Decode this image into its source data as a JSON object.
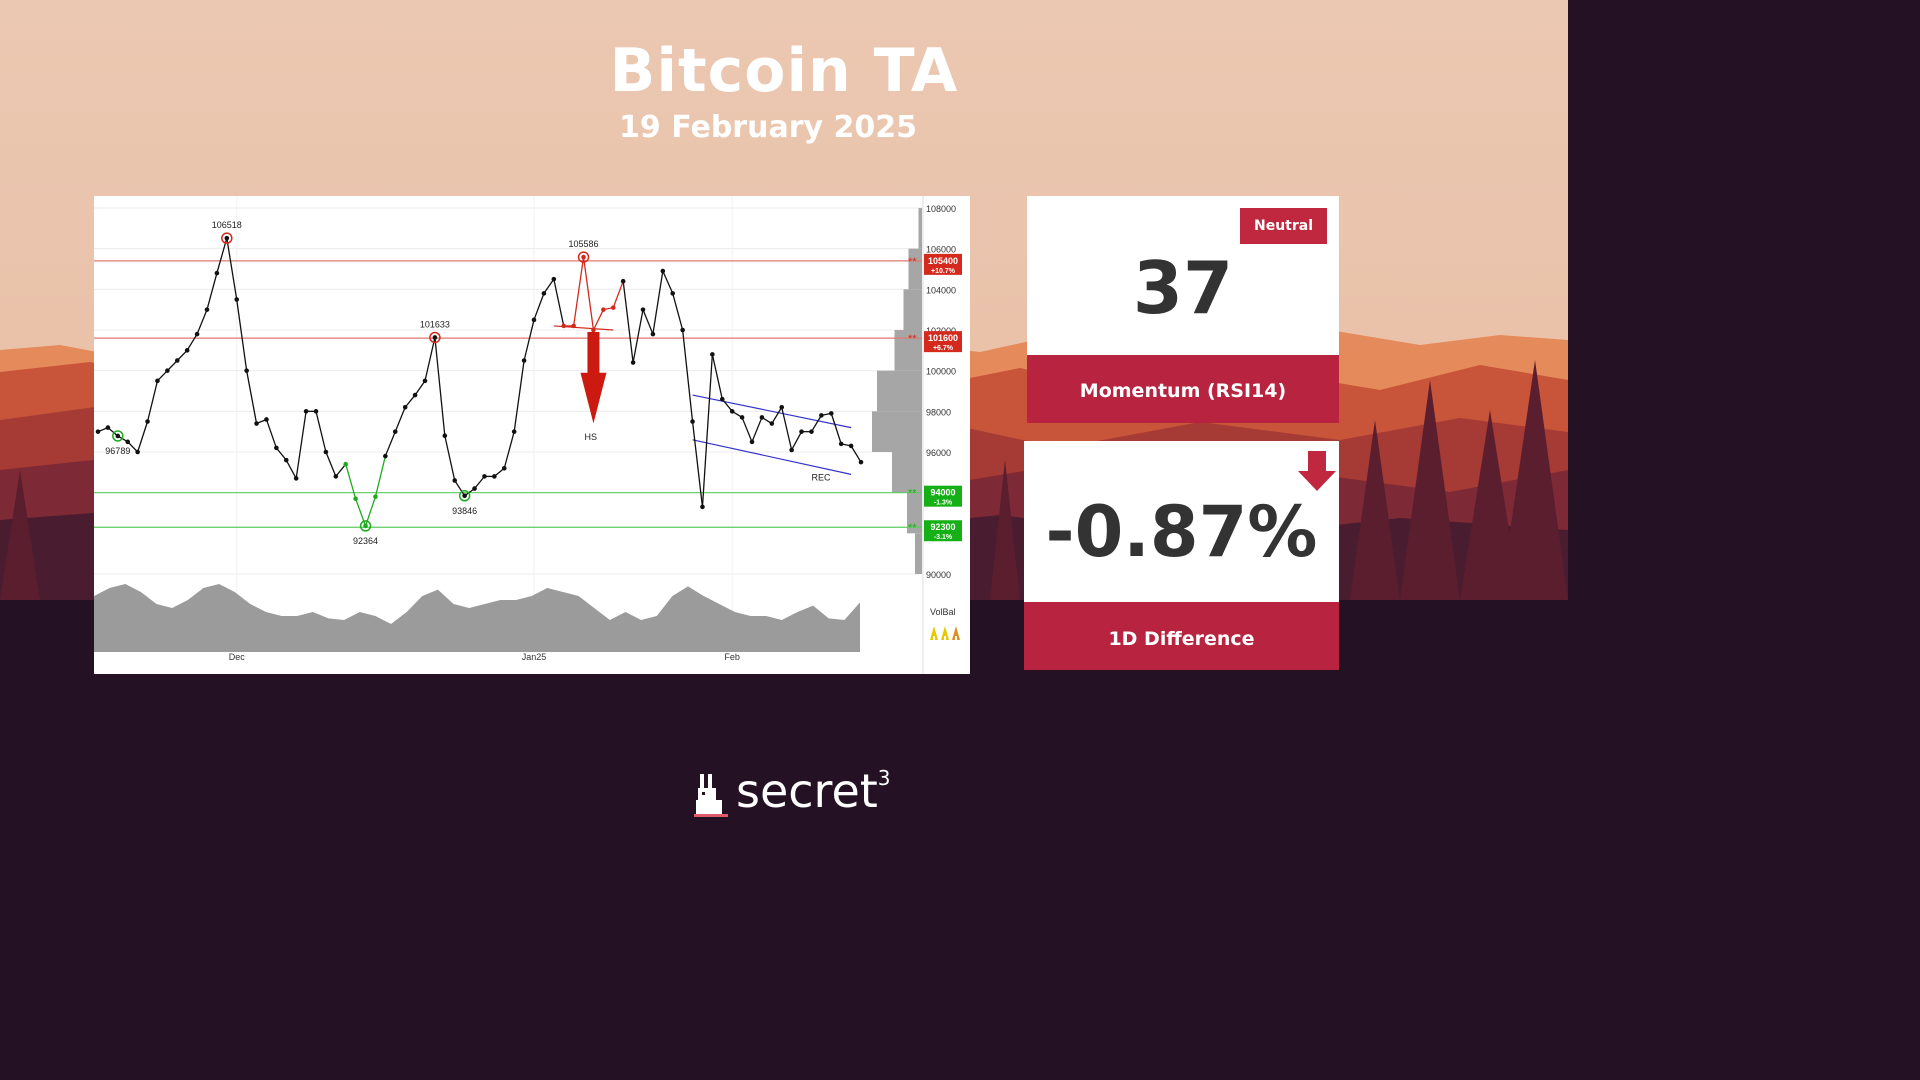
{
  "header": {
    "title": "Bitcoin TA",
    "date": "19 February 2025"
  },
  "rsi_card": {
    "badge": "Neutral",
    "value": "37",
    "label": "Momentum (RSI14)"
  },
  "diff_card": {
    "value": "-0.87%",
    "label": "1D Difference",
    "direction": "down"
  },
  "brand": {
    "name": "secret",
    "superscript": "3"
  },
  "colors": {
    "accent_red": "#b8233f",
    "resistance": "#e07a72",
    "support": "#5ccc5c",
    "price_line": "#111111",
    "background_top": "#ebc8b2",
    "background_bottom": "#241224"
  },
  "chart_data": {
    "type": "line",
    "title": "",
    "xlabel": "",
    "ylabel": "",
    "ylim": [
      88000,
      108000
    ],
    "x_ticks": [
      "Dec",
      "Jan25",
      "Feb"
    ],
    "y_ticks": [
      "108000",
      "106000",
      "104000",
      "102000",
      "100000",
      "98000",
      "96000",
      "90000"
    ],
    "price": [
      97000,
      97200,
      96789,
      96500,
      96000,
      97500,
      99500,
      100000,
      100500,
      101000,
      101800,
      103000,
      104800,
      106518,
      103500,
      100000,
      97400,
      97600,
      96200,
      95600,
      94700,
      98000,
      98000,
      96000,
      94800,
      95400,
      93700,
      92364,
      93800,
      95800,
      97000,
      98200,
      98800,
      99500,
      101633,
      96800,
      94600,
      93846,
      94200,
      94800,
      94800,
      95200,
      97000,
      100500,
      102500,
      103800,
      104500,
      102200,
      102200,
      105586,
      102000,
      103000,
      103100,
      104400,
      100400,
      103000,
      101800,
      104900,
      103800,
      102000,
      97500,
      93300,
      100800,
      98600,
      98000,
      97700,
      96500,
      97700,
      97400,
      98200,
      96100,
      97000,
      97000,
      97800,
      97900,
      96400,
      96300,
      95500
    ],
    "annotations": [
      {
        "label": "106518",
        "value": 106518,
        "kind": "high"
      },
      {
        "label": "96789",
        "value": 96789,
        "kind": "low"
      },
      {
        "label": "101633",
        "value": 101633,
        "kind": "high"
      },
      {
        "label": "92364",
        "value": 92364,
        "kind": "low"
      },
      {
        "label": "93846",
        "value": 93846,
        "kind": "low"
      },
      {
        "label": "105586",
        "value": 105586,
        "kind": "high"
      }
    ],
    "patterns": [
      {
        "label": "HS",
        "kind": "head-and-shoulders",
        "bias": "bearish"
      },
      {
        "label": "REC",
        "kind": "descending channel"
      }
    ],
    "levels": [
      {
        "value": 105400,
        "label": "105400",
        "change": "+10.7%",
        "kind": "resistance"
      },
      {
        "value": 101600,
        "label": "101600",
        "change": "+6.7%",
        "kind": "resistance"
      },
      {
        "value": 94000,
        "label": "94000",
        "change": "-1.3%",
        "kind": "support"
      },
      {
        "value": 92300,
        "label": "92300",
        "change": "-3.1%",
        "kind": "support"
      }
    ],
    "volume_profile": [
      {
        "from": 106000,
        "to": 108000,
        "weight": 0.07
      },
      {
        "from": 104000,
        "to": 106000,
        "weight": 0.27
      },
      {
        "from": 102000,
        "to": 104000,
        "weight": 0.37
      },
      {
        "from": 100000,
        "to": 102000,
        "weight": 0.55
      },
      {
        "from": 98000,
        "to": 100000,
        "weight": 0.9
      },
      {
        "from": 96000,
        "to": 98000,
        "weight": 1.0
      },
      {
        "from": 94000,
        "to": 96000,
        "weight": 0.6
      },
      {
        "from": 92000,
        "to": 94000,
        "weight": 0.3
      },
      {
        "from": 90000,
        "to": 92000,
        "weight": 0.14
      }
    ],
    "volume_label": "VolBal",
    "volume_balance": [
      0.7,
      0.8,
      0.85,
      0.75,
      0.6,
      0.55,
      0.65,
      0.8,
      0.85,
      0.75,
      0.6,
      0.5,
      0.45,
      0.45,
      0.5,
      0.42,
      0.4,
      0.5,
      0.45,
      0.35,
      0.5,
      0.7,
      0.78,
      0.6,
      0.55,
      0.6,
      0.65,
      0.65,
      0.7,
      0.8,
      0.75,
      0.7,
      0.55,
      0.4,
      0.5,
      0.4,
      0.45,
      0.7,
      0.82,
      0.7,
      0.6,
      0.5,
      0.45,
      0.45,
      0.4,
      0.5,
      0.58,
      0.42,
      0.4,
      0.62
    ]
  }
}
